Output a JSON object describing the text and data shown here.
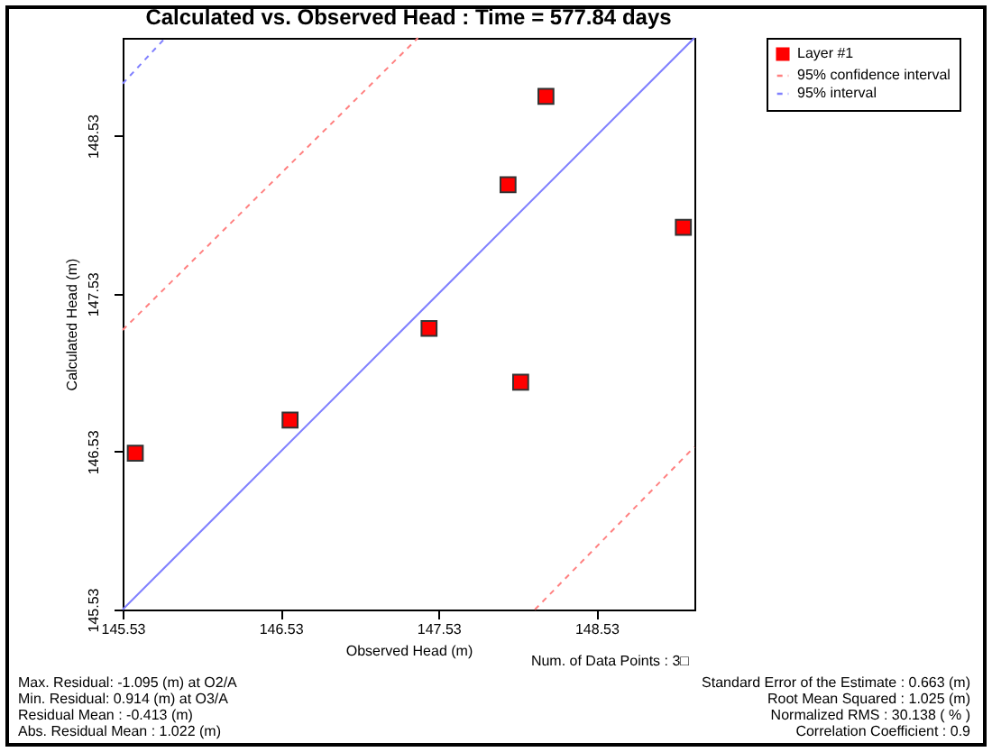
{
  "chart_data": {
    "type": "scatter",
    "title": "Calculated vs. Observed Head : Time = 577.84 days",
    "xlabel": "Observed Head (m)",
    "ylabel": "Calculated Head (m)",
    "xlim": [
      145.53,
      149.15
    ],
    "ylim": [
      145.53,
      149.15
    ],
    "xticks": [
      {
        "value": 145.53,
        "label": "145.53"
      },
      {
        "value": 146.53,
        "label": "146.53"
      },
      {
        "value": 147.53,
        "label": "147.53"
      },
      {
        "value": 148.53,
        "label": "148.53"
      }
    ],
    "yticks": [
      {
        "value": 145.53,
        "label": "145.53"
      },
      {
        "value": 146.53,
        "label": "146.53"
      },
      {
        "value": 147.53,
        "label": "147.53"
      },
      {
        "value": 148.53,
        "label": "148.53"
      }
    ],
    "legend": "top right",
    "series": [
      {
        "name": "Layer #1",
        "type": "scatter",
        "marker": "square",
        "color": "#ff0000",
        "x": [
          145.61,
          146.59,
          147.47,
          148.05,
          147.97,
          148.21,
          149.08
        ],
        "values": [
          146.52,
          146.73,
          147.31,
          146.97,
          148.22,
          148.78,
          147.95
        ]
      },
      {
        "type": "line",
        "color": "#8080ff",
        "line_style": "solid",
        "x": [
          145.53,
          149.15
        ],
        "values": [
          145.53,
          149.15
        ]
      },
      {
        "name": "95% confidence interval",
        "type": "line",
        "color": "#ff8080",
        "line_style": "dashed",
        "x": [
          145.53,
          147.4
        ],
        "values": [
          147.3,
          149.15
        ]
      },
      {
        "type": "line",
        "color": "#ff8080",
        "line_style": "dashed",
        "x": [
          148.14,
          149.15
        ],
        "values": [
          145.53,
          146.56
        ]
      },
      {
        "name": "95% interval",
        "type": "line",
        "color": "#8080ff",
        "line_style": "dashed",
        "x": [
          145.53,
          145.8
        ],
        "values": [
          148.86,
          149.15
        ]
      }
    ],
    "annotations": [
      "Num. of Data Points : 3□",
      "Max. Residual: -1.095 (m) at O2/A",
      "Min. Residual: 0.914 (m) at O3/A",
      "Residual Mean : -0.413 (m)",
      "Abs. Residual Mean : 1.022 (m)",
      "Standard Error of the Estimate : 0.663 (m)",
      "Root Mean Squared : 1.025 (m)",
      "Normalized RMS : 30.138 ( % )",
      "Correlation Coefficient : 0.9"
    ]
  }
}
